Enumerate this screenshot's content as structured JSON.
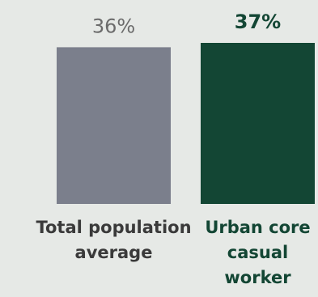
{
  "chart_data": {
    "type": "bar",
    "categories": [
      [
        "Total population",
        "average"
      ],
      [
        "Urban core",
        "casual",
        "worker"
      ]
    ],
    "values": [
      36,
      37
    ],
    "value_labels": [
      "36%",
      "37%"
    ],
    "title": "",
    "xlabel": "",
    "ylabel": "",
    "ylim": [
      0,
      37
    ],
    "grid": false,
    "colors": {
      "bars": [
        "#7b7f8c",
        "#134634"
      ],
      "value_labels": [
        "#6b6b6b",
        "#134634"
      ],
      "category_labels": [
        "#3a3a3a",
        "#134634"
      ],
      "background": "#e6e9e6"
    },
    "emphasis": [
      false,
      true
    ]
  }
}
